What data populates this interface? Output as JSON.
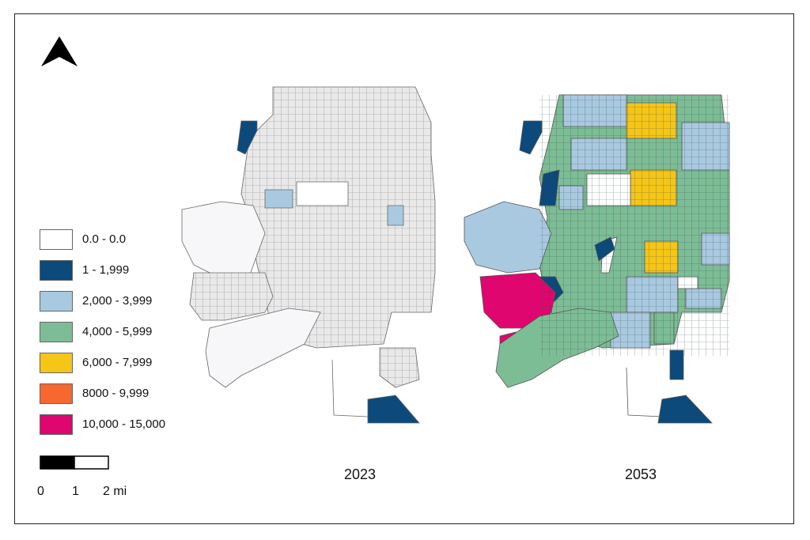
{
  "north_arrow": {
    "icon": "north-arrow-icon"
  },
  "legend": {
    "items": [
      {
        "label": "0.0 - 0.0",
        "color": "#ffffff"
      },
      {
        "label": "1 - 1,999",
        "color": "#0b4a7b"
      },
      {
        "label": "2,000 - 3,999",
        "color": "#a9c9e0"
      },
      {
        "label": "4,000 - 5,999",
        "color": "#7dbd96"
      },
      {
        "label": "6,000 - 7,999",
        "color": "#f5c518"
      },
      {
        "label": "8000 - 9,999",
        "color": "#f6682f"
      },
      {
        "label": "10,000 - 15,000",
        "color": "#e0066f"
      }
    ]
  },
  "scale_bar": {
    "labels": [
      "0",
      "1",
      "2 mi"
    ]
  },
  "maps": [
    {
      "year": "2023"
    },
    {
      "year": "2053"
    }
  ]
}
